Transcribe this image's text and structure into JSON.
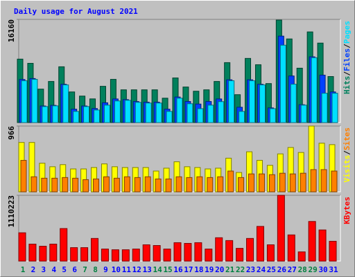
{
  "title": "Daily usage for August 2021",
  "chart_data": [
    {
      "type": "bar",
      "ylim": [
        0,
        16160
      ],
      "yticks": [
        16160
      ],
      "series": [
        {
          "name": "Hits",
          "color": "#00805C",
          "values": [
            9940,
            9280,
            5240,
            6440,
            8740,
            4800,
            4150,
            3710,
            5680,
            6770,
            5130,
            5130,
            5130,
            5130,
            3820,
            6990,
            5570,
            4910,
            5130,
            6440,
            9390,
            4370,
            10050,
            9060,
            6110,
            16050,
            13100,
            8520,
            14200,
            12450,
            7210
          ]
        },
        {
          "name": "Files",
          "color": "#0040FF",
          "values": [
            6750,
            6900,
            2600,
            2700,
            6000,
            2100,
            2600,
            2200,
            3100,
            3700,
            3600,
            3300,
            3200,
            3200,
            2100,
            4000,
            3300,
            2900,
            3300,
            3700,
            6700,
            2400,
            6700,
            6000,
            2300,
            13540,
            7300,
            2800,
            10300,
            7430,
            4800
          ]
        },
        {
          "name": "Pages",
          "color": "#00E0FF",
          "values": [
            6550,
            6770,
            2510,
            2620,
            5900,
            1750,
            2510,
            1970,
            2730,
            3390,
            3490,
            3170,
            3060,
            3060,
            1750,
            3820,
            2950,
            2180,
            2730,
            3280,
            6550,
            1750,
            6550,
            5900,
            2180,
            12120,
            6010,
            2730,
            10160,
            4590,
            4590
          ]
        }
      ]
    },
    {
      "type": "bar",
      "ylim": [
        0,
        966
      ],
      "yticks": [
        966
      ],
      "series": [
        {
          "name": "Visits",
          "color": "#FFFF00",
          "values": [
            725,
            725,
            420,
            368,
            399,
            336,
            336,
            357,
            410,
            368,
            357,
            357,
            357,
            305,
            347,
            441,
            368,
            357,
            336,
            347,
            494,
            284,
            588,
            462,
            389,
            557,
            651,
            578,
            966,
            714,
            693
          ]
        },
        {
          "name": "Sites",
          "color": "#FF8000",
          "values": [
            462,
            221,
            200,
            200,
            210,
            200,
            179,
            189,
            221,
            200,
            221,
            210,
            221,
            189,
            189,
            221,
            210,
            221,
            210,
            221,
            305,
            210,
            263,
            263,
            252,
            273,
            263,
            273,
            326,
            326,
            305
          ]
        }
      ]
    },
    {
      "type": "bar",
      "ylim": [
        0,
        1110223
      ],
      "yticks": [
        1110223
      ],
      "categories": [
        "1",
        "2",
        "3",
        "4",
        "5",
        "6",
        "7",
        "8",
        "9",
        "10",
        "11",
        "12",
        "13",
        "14",
        "15",
        "16",
        "17",
        "18",
        "19",
        "20",
        "21",
        "22",
        "23",
        "24",
        "25",
        "26",
        "27",
        "28",
        "29",
        "30",
        "31"
      ],
      "category_colors": [
        "#008040",
        "#0000FF",
        "#0000FF",
        "#0000FF",
        "#0000FF",
        "#0000FF",
        "#008040",
        "#008040",
        "#0000FF",
        "#0000FF",
        "#0000FF",
        "#0000FF",
        "#0000FF",
        "#008040",
        "#008040",
        "#0000FF",
        "#0000FF",
        "#0000FF",
        "#0000FF",
        "#0000FF",
        "#008040",
        "#008040",
        "#0000FF",
        "#0000FF",
        "#0000FF",
        "#0000FF",
        "#0000FF",
        "#008040",
        "#008040",
        "#0000FF",
        "#0000FF"
      ],
      "series": [
        {
          "name": "KBytes",
          "color": "#FF0000",
          "values": [
            477500,
            286500,
            250700,
            286500,
            549100,
            226800,
            226800,
            382000,
            202900,
            191000,
            191000,
            202900,
            274600,
            262600,
            202900,
            310400,
            298400,
            310400,
            202900,
            394000,
            346200,
            214900,
            382000,
            585000,
            274600,
            1110223,
            441700,
            155200,
            668500,
            525300,
            334300
          ]
        }
      ]
    }
  ]
}
